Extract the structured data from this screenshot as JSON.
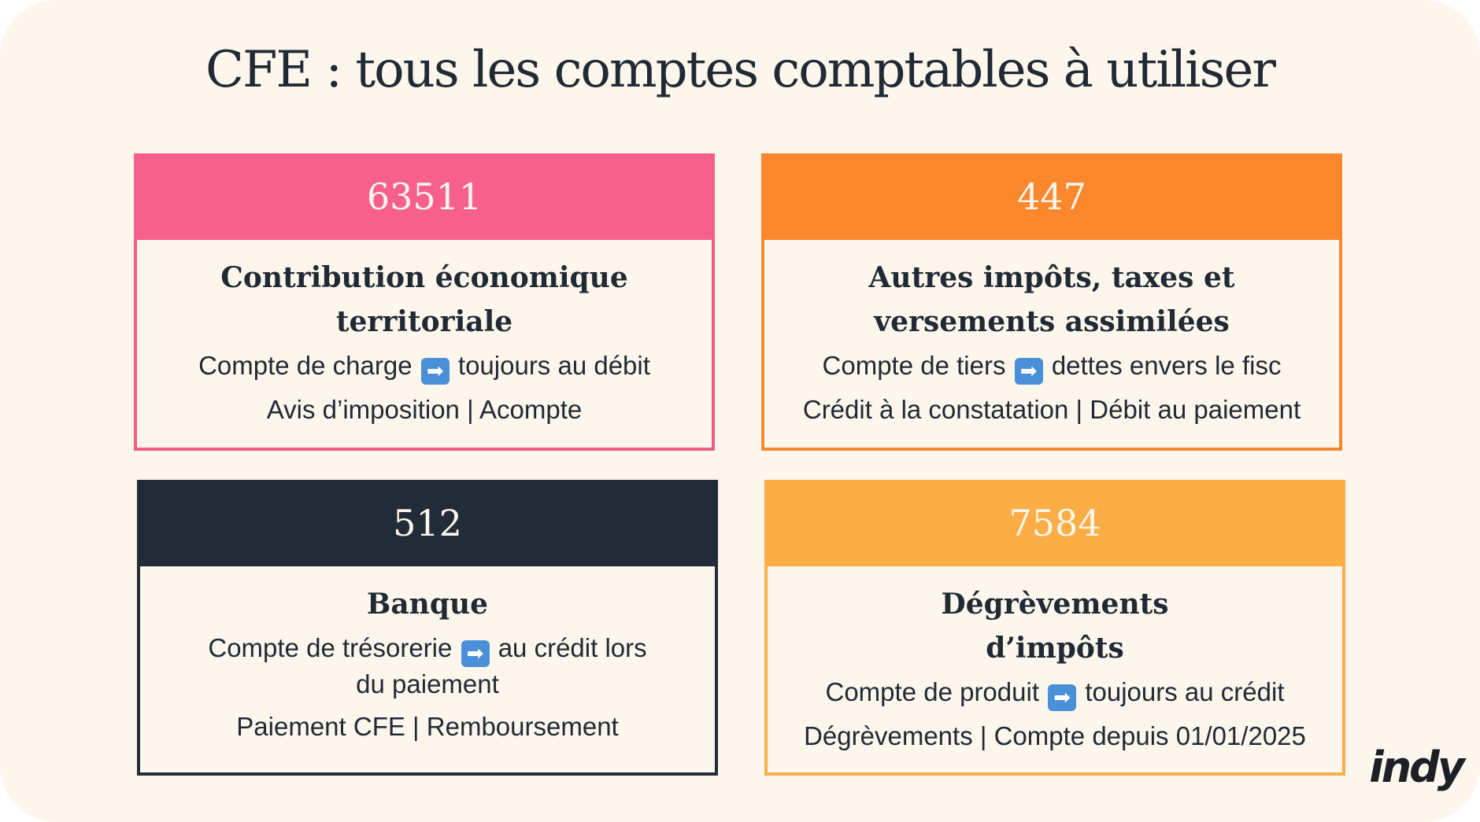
{
  "title": "CFE : tous les comptes comptables à utiliser",
  "arrow_icon": "➡",
  "cards": [
    {
      "account": "63511",
      "name_line1": "Contribution économique",
      "name_line2": "territoriale",
      "desc_before": "Compte de charge",
      "desc_after": "toujours au débit",
      "tags": "Avis d’imposition | Acompte",
      "color": "#f75f8d"
    },
    {
      "account": "447",
      "name_line1": "Autres impôts, taxes et",
      "name_line2": "versements assimilées",
      "desc_before": "Compte de tiers",
      "desc_after": "dettes envers le fisc",
      "tags": "Crédit à la constatation | Débit au paiement",
      "color": "#fb882d"
    },
    {
      "account": "512",
      "name_line1": "Banque",
      "desc_before": "Compte de trésorerie",
      "desc_after": "au crédit lors",
      "desc_line2": "du paiement",
      "tags": "Paiement CFE | Remboursement",
      "color": "#222c38"
    },
    {
      "account": "7584",
      "name_line1": "Dégrèvements",
      "name_line2": "d’impôts",
      "desc_before": "Compte de produit",
      "desc_after": "toujours au crédit",
      "tags": "Dégrèvements | Compte depuis 01/01/2025",
      "color": "#fbad46"
    }
  ],
  "logo": "indy"
}
